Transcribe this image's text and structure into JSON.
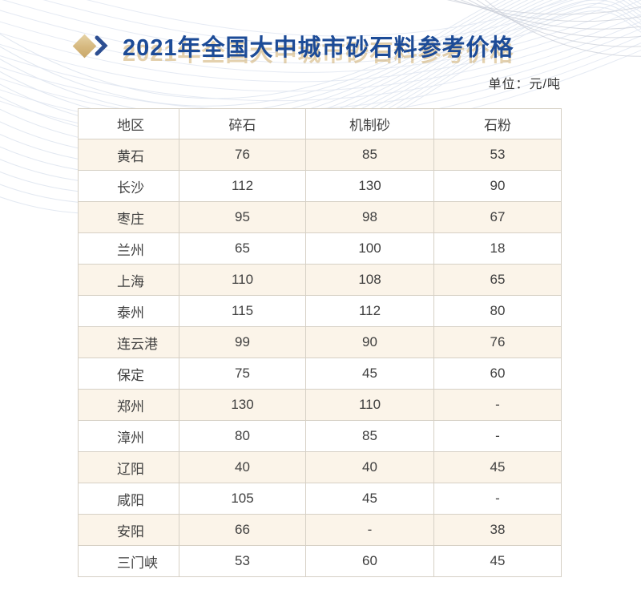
{
  "header": {
    "title": "2021年全国大中城市砂石料参考价格",
    "unit_label": "单位：元/吨"
  },
  "icons": {
    "title_marker": "gold-diamond-icon",
    "title_arrow": "chevron-right-icon"
  },
  "colors": {
    "title_blue": "#1c4b97",
    "title_shadow_gold": "#ceac6b",
    "diamond_gold": "#d6b87e",
    "chevron_navy": "#2d4f92",
    "row_cream": "#fbf4e9",
    "table_border": "#d6d0c5",
    "text_gray": "#3f3f3f",
    "wave_line_blue": "#dfe5f0",
    "wave_line_gray": "#c8ccd5"
  },
  "table": {
    "columns": [
      "地区",
      "碎石",
      "机制砂",
      "石粉"
    ],
    "rows": [
      [
        "黄石",
        "76",
        "85",
        "53"
      ],
      [
        "长沙",
        "112",
        "130",
        "90"
      ],
      [
        "枣庄",
        "95",
        "98",
        "67"
      ],
      [
        "兰州",
        "65",
        "100",
        "18"
      ],
      [
        "上海",
        "110",
        "108",
        "65"
      ],
      [
        "泰州",
        "115",
        "112",
        "80"
      ],
      [
        "连云港",
        "99",
        "90",
        "76"
      ],
      [
        "保定",
        "75",
        "45",
        "60"
      ],
      [
        "郑州",
        "130",
        "110",
        "-"
      ],
      [
        "漳州",
        "80",
        "85",
        "-"
      ],
      [
        "辽阳",
        "40",
        "40",
        "45"
      ],
      [
        "咸阳",
        "105",
        "45",
        "-"
      ],
      [
        "安阳",
        "66",
        "-",
        "38"
      ],
      [
        "三门峡",
        "53",
        "60",
        "45"
      ]
    ]
  }
}
